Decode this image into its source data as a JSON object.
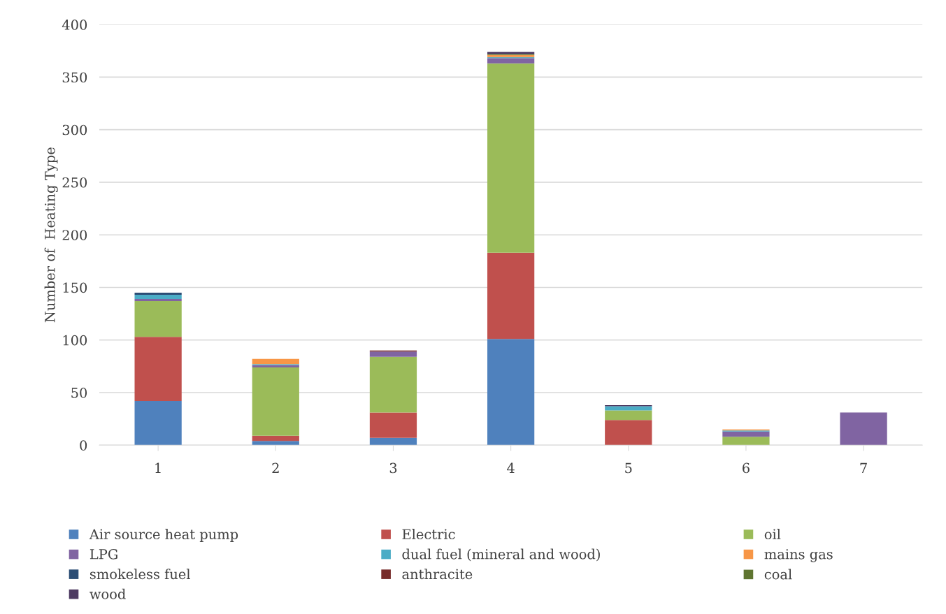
{
  "chart_data": {
    "type": "bar",
    "stacked": true,
    "ylabel": "Number of  Heating Type",
    "categories": [
      "1",
      "2",
      "3",
      "4",
      "5",
      "6",
      "7"
    ],
    "ylim": [
      0,
      400
    ],
    "yticks": [
      0,
      50,
      100,
      150,
      200,
      250,
      300,
      350,
      400
    ],
    "grid": "y",
    "legend": "bottom",
    "series": [
      {
        "name": "Air source heat pump",
        "color": "#4f81bd",
        "values": [
          42,
          4,
          7,
          101,
          0,
          0,
          0
        ]
      },
      {
        "name": "Electric",
        "color": "#c0504d",
        "values": [
          61,
          5,
          24,
          82,
          24,
          0,
          0
        ]
      },
      {
        "name": "oil",
        "color": "#9bbb59",
        "values": [
          34,
          65,
          53,
          180,
          9,
          8,
          0
        ]
      },
      {
        "name": "LPG",
        "color": "#8064a2",
        "values": [
          2,
          2,
          5,
          5,
          0,
          5,
          31
        ]
      },
      {
        "name": "dual fuel (mineral and wood)",
        "color": "#4bacc6",
        "values": [
          4,
          1,
          0,
          1,
          4,
          1,
          0
        ]
      },
      {
        "name": "mains gas",
        "color": "#f79646",
        "values": [
          0,
          5,
          0,
          2,
          0,
          1,
          0
        ]
      },
      {
        "name": "smokeless fuel",
        "color": "#2c4d75",
        "values": [
          2,
          0,
          0,
          0,
          0,
          0,
          0
        ]
      },
      {
        "name": "anthracite",
        "color": "#772c2a",
        "values": [
          0,
          0,
          1,
          0,
          0,
          0,
          0
        ]
      },
      {
        "name": "coal",
        "color": "#5f7530",
        "values": [
          0,
          0,
          0,
          1,
          0,
          0,
          0
        ]
      },
      {
        "name": "wood",
        "color": "#4d3b62",
        "values": [
          0,
          0,
          0,
          2,
          1,
          0,
          0
        ]
      }
    ]
  }
}
